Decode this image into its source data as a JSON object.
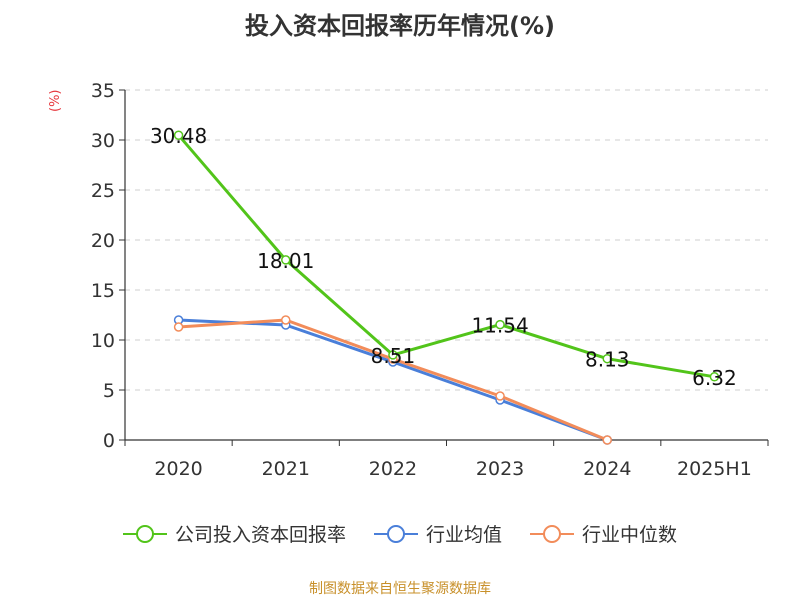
{
  "chart_data": {
    "type": "line",
    "title": "投入资本回报率历年情况(%)",
    "y_unit": "(%)",
    "categories": [
      "2020",
      "2021",
      "2022",
      "2023",
      "2024",
      "2025H1"
    ],
    "ylim": [
      0,
      35
    ],
    "yticks": [
      0,
      5,
      10,
      15,
      20,
      25,
      30,
      35
    ],
    "grid": true,
    "legend_position": "bottom",
    "series": [
      {
        "name": "公司投入资本回报率",
        "color": "#52c41a",
        "values": [
          30.48,
          18.01,
          8.51,
          11.54,
          8.13,
          6.32
        ],
        "labels": [
          "30.48",
          "18.01",
          "8.51",
          "11.54",
          "8.13",
          "6.32"
        ]
      },
      {
        "name": "行业均值",
        "color": "#4a7fd9",
        "values": [
          12.0,
          11.5,
          7.8,
          4.0,
          0.0,
          null
        ]
      },
      {
        "name": "行业中位数",
        "color": "#f28c5a",
        "values": [
          11.3,
          12.0,
          8.1,
          4.4,
          0.0,
          null
        ]
      }
    ]
  },
  "source": "制图数据来自恒生聚源数据库"
}
